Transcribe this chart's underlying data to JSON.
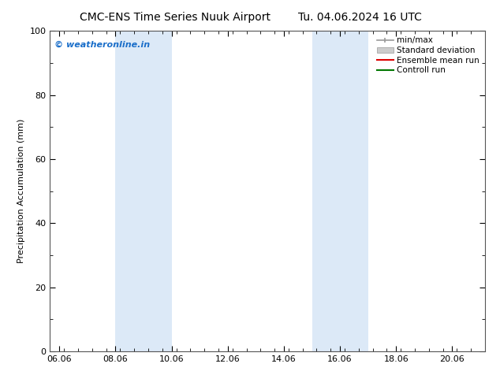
{
  "title_left": "CMC-ENS Time Series Nuuk Airport",
  "title_right": "Tu. 04.06.2024 16 UTC",
  "ylabel": "Precipitation Accumulation (mm)",
  "ylim": [
    0,
    100
  ],
  "yticks": [
    0,
    20,
    40,
    60,
    80,
    100
  ],
  "xtick_labels": [
    "06.06",
    "08.06",
    "10.06",
    "12.06",
    "14.06",
    "16.06",
    "18.06",
    "20.06"
  ],
  "shade_color": "#dce9f7",
  "watermark": "© weatheronline.in",
  "watermark_color": "#1a6ec9",
  "background_color": "#ffffff",
  "font_size_title": 10,
  "font_size_axis": 8,
  "font_size_legend": 7.5,
  "font_size_watermark": 8,
  "font_size_ylabel": 8
}
